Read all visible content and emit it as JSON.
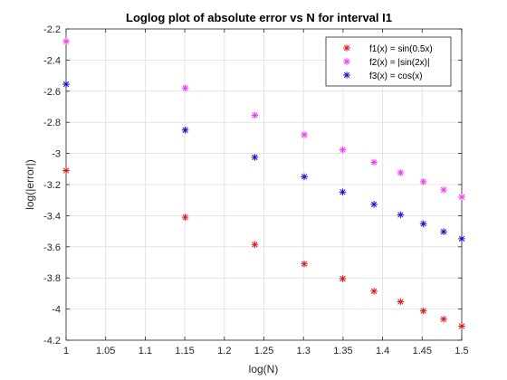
{
  "chart_data": {
    "type": "scatter",
    "title": "Loglog plot of absolute error vs N for interval I1",
    "xlabel": "log(N)",
    "ylabel": "log(|error|)",
    "xlim": [
      1,
      1.5
    ],
    "ylim": [
      -4.2,
      -2.2
    ],
    "xticks": [
      1,
      1.05,
      1.1,
      1.15,
      1.2,
      1.25,
      1.3,
      1.35,
      1.4,
      1.45,
      1.5
    ],
    "xtick_labels": [
      "1",
      "1.05",
      "1.1",
      "1.15",
      "1.2",
      "1.25",
      "1.3",
      "1.35",
      "1.4",
      "1.45",
      "1.5"
    ],
    "yticks": [
      -2.2,
      -2.4,
      -2.6,
      -2.8,
      -3,
      -3.2,
      -3.4,
      -3.6,
      -3.8,
      -4,
      -4.2
    ],
    "ytick_labels": [
      "-2.2",
      "-2.4",
      "-2.6",
      "-2.8",
      "-3",
      "-3.2",
      "-3.4",
      "-3.6",
      "-3.8",
      "-4",
      "-4.2"
    ],
    "grid": true,
    "legend_position": "top-right",
    "marker": "*",
    "x": [
      1,
      1.1505,
      1.2385,
      1.301,
      1.3495,
      1.3891,
      1.4226,
      1.4515,
      1.4771,
      1.5
    ],
    "series": [
      {
        "name": "f1(x) = sin(0.5x)",
        "color": "#e8141b",
        "values": [
          -3.11,
          -3.41,
          -3.585,
          -3.71,
          -3.805,
          -3.885,
          -3.953,
          -4.012,
          -4.065,
          -4.11
        ]
      },
      {
        "name": "f2(x) = |sin(2x)|",
        "color": "#ff33ff",
        "values": [
          -2.28,
          -2.58,
          -2.755,
          -2.88,
          -2.977,
          -3.057,
          -3.124,
          -3.182,
          -3.234,
          -3.28
        ]
      },
      {
        "name": "f3(x) = cos(x)",
        "color": "#1010e0",
        "values": [
          -2.555,
          -2.85,
          -3.025,
          -3.15,
          -3.248,
          -3.327,
          -3.394,
          -3.452,
          -3.503,
          -3.548
        ]
      }
    ]
  }
}
